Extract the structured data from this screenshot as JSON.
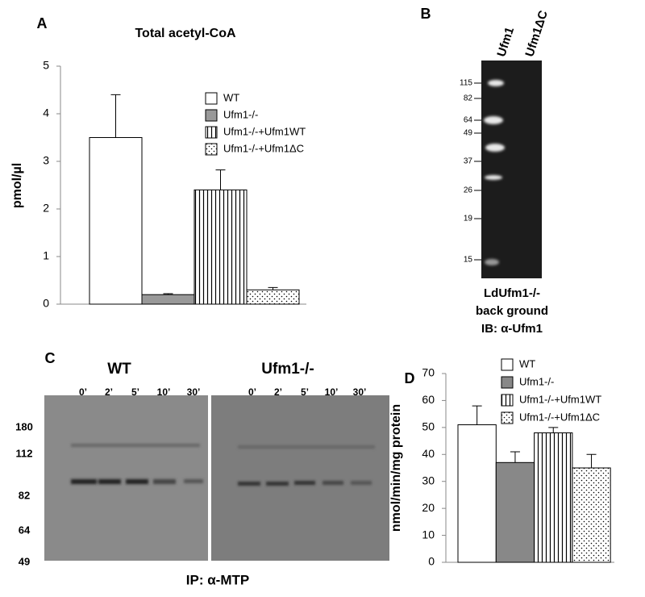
{
  "chart_data": [
    {
      "type": "bar",
      "panel_label": "A",
      "title": "Total acetyl-CoA",
      "y_label": "pmol/µl",
      "categories": [
        null
      ],
      "series": [
        {
          "name": "WT",
          "color": "#ffffff",
          "pattern": "solid",
          "values": [
            3.5
          ],
          "errors": [
            0.9
          ]
        },
        {
          "name": "Ufm1-/-",
          "color": "#999999",
          "pattern": "solid",
          "values": [
            0.2
          ],
          "errors": [
            0.02
          ]
        },
        {
          "name": "Ufm1-/-+Ufm1WT",
          "color": "#ffffff",
          "pattern": "vertical-lines",
          "values": [
            2.4
          ],
          "errors": [
            0.42
          ]
        },
        {
          "name": "Ufm1-/-+Ufm1ΔC",
          "color": "#ffffff",
          "pattern": "dots",
          "values": [
            0.3
          ],
          "errors": [
            0.05
          ]
        }
      ],
      "ylim": [
        0,
        5
      ],
      "yticks": [
        0,
        1,
        2,
        3,
        4,
        5
      ],
      "legend": "upper right"
    },
    {
      "type": "bar",
      "panel_label": "D",
      "y_label": "nmol/min/mg protein",
      "categories": [
        null
      ],
      "series": [
        {
          "name": "WT",
          "color": "#ffffff",
          "pattern": "solid",
          "values": [
            51
          ],
          "errors": [
            7
          ]
        },
        {
          "name": "Ufm1-/-",
          "color": "#888888",
          "pattern": "solid",
          "values": [
            37
          ],
          "errors": [
            4
          ]
        },
        {
          "name": "Ufm1-/-+Ufm1WT",
          "color": "#ffffff",
          "pattern": "vertical-lines",
          "values": [
            48
          ],
          "errors": [
            2
          ]
        },
        {
          "name": "Ufm1-/-+Ufm1ΔC",
          "color": "#ffffff",
          "pattern": "dots",
          "values": [
            35
          ],
          "errors": [
            5
          ]
        }
      ],
      "ylim": [
        0,
        70
      ],
      "yticks": [
        0,
        10,
        20,
        30,
        40,
        50,
        60,
        70
      ],
      "legend": "upper right"
    }
  ],
  "gel_b": {
    "panel_label": "B",
    "lanes": [
      "Ufm1",
      "Ufm1ΔC"
    ],
    "markers": [
      "115",
      "82",
      "64",
      "49",
      "37",
      "26",
      "19",
      "15"
    ],
    "caption": [
      "LdUfm1-/-",
      "back ground",
      "IB: α-Ufm1"
    ]
  },
  "gel_c": {
    "panel_label": "C",
    "groups": [
      {
        "label": "WT",
        "times": [
          "0’",
          "2’",
          "5’",
          "10’",
          "30’"
        ]
      },
      {
        "label": "Ufm1-/-",
        "times": [
          "0’",
          "2’",
          "5’",
          "10’",
          "30’"
        ]
      }
    ],
    "markers": [
      "180",
      "112",
      "82",
      "64",
      "49"
    ],
    "caption": "IP: α-MTP"
  }
}
